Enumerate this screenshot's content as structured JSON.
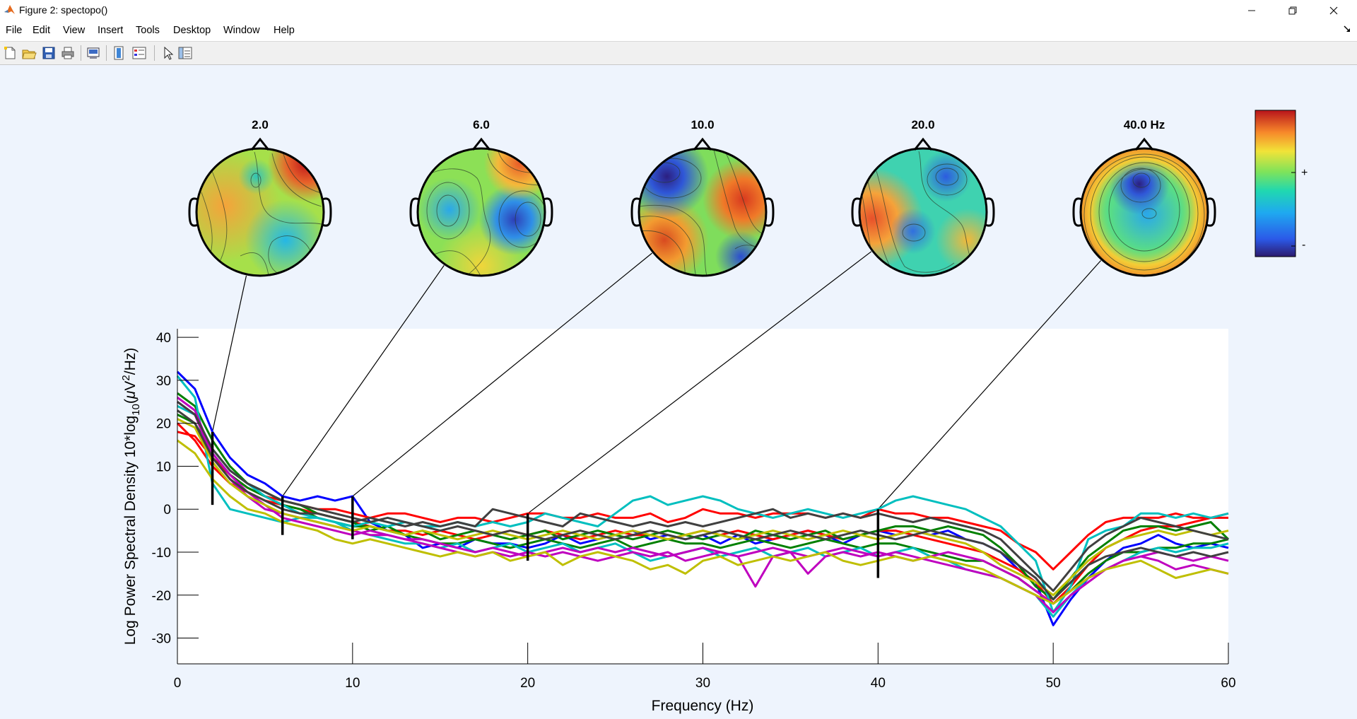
{
  "window": {
    "title": "Figure 2: spectopo()",
    "controls": [
      "minimize",
      "restore",
      "close"
    ]
  },
  "menu": [
    "File",
    "Edit",
    "View",
    "Insert",
    "Tools",
    "Desktop",
    "Window",
    "Help"
  ],
  "toolbar": [
    "new-figure-icon",
    "open-file-icon",
    "save-icon",
    "print-icon",
    "print-preview-icon",
    "colorbar-icon",
    "legend-icon",
    "pointer-icon",
    "property-inspector-icon"
  ],
  "colorbar": {
    "plus_label": "+",
    "minus_label": "-"
  },
  "chart_data": {
    "type": "line",
    "xlabel": "Frequency (Hz)",
    "ylabel_parts": [
      "Log Power Spectral Density 10*log",
      "10",
      "(",
      "μ",
      "V",
      "2",
      "/Hz)"
    ],
    "xlim": [
      0,
      60
    ],
    "ylim": [
      -36,
      42
    ],
    "xticks": [
      0,
      10,
      20,
      30,
      40,
      50,
      60
    ],
    "yticks": [
      -30,
      -20,
      -10,
      0,
      10,
      20,
      30,
      40
    ],
    "grid": false,
    "x": [
      0,
      1,
      2,
      3,
      4,
      5,
      6,
      7,
      8,
      9,
      10,
      11,
      12,
      13,
      14,
      15,
      16,
      17,
      18,
      19,
      20,
      21,
      22,
      23,
      24,
      25,
      26,
      27,
      28,
      29,
      30,
      31,
      32,
      33,
      34,
      35,
      36,
      37,
      38,
      39,
      40,
      41,
      42,
      43,
      44,
      45,
      46,
      47,
      48,
      49,
      50,
      51,
      52,
      53,
      54,
      55,
      56,
      57,
      58,
      59,
      60
    ],
    "marker_freqs": [
      2,
      6,
      10,
      20,
      40
    ],
    "marker_ranges": [
      [
        1,
        18
      ],
      [
        -6,
        3
      ],
      [
        -7,
        3
      ],
      [
        -12,
        -1
      ],
      [
        -16,
        0
      ]
    ],
    "topo_labels": [
      "2.0",
      "6.0",
      "10.0",
      "20.0",
      "40.0 Hz"
    ],
    "series": [
      {
        "color": "#0000ff",
        "values": [
          32,
          28,
          18,
          12,
          8,
          6,
          3,
          2,
          3,
          2,
          3,
          -3,
          -5,
          -6,
          -9,
          -8,
          -9,
          -7,
          -8,
          -8,
          -9,
          -8,
          -6,
          -8,
          -7,
          -6,
          -5,
          -7,
          -6,
          -7,
          -6,
          -8,
          -6,
          -8,
          -7,
          -6,
          -5,
          -6,
          -8,
          -6,
          -5,
          -6,
          -5,
          -6,
          -5,
          -7,
          -8,
          -10,
          -14,
          -17,
          -27,
          -21,
          -16,
          -12,
          -9,
          -8,
          -6,
          -8,
          -9,
          -8,
          -9
        ]
      },
      {
        "color": "#ff0000",
        "values": [
          18,
          17,
          12,
          8,
          5,
          3,
          2,
          1,
          0,
          0,
          -1,
          -2,
          -1,
          -1,
          -2,
          -3,
          -2,
          -2,
          -3,
          -2,
          -1,
          -1,
          -2,
          -2,
          -1,
          -2,
          -2,
          -1,
          -3,
          -2,
          0,
          -1,
          -1,
          -2,
          -1,
          -1,
          -1,
          -2,
          -1,
          -2,
          0,
          -1,
          -1,
          -2,
          -2,
          -3,
          -4,
          -5,
          -8,
          -10,
          -14,
          -10,
          -6,
          -3,
          -2,
          -2,
          -2,
          -1,
          -2,
          -2,
          -1
        ]
      },
      {
        "color": "#ff0000",
        "values": [
          20,
          16,
          10,
          6,
          4,
          2,
          1,
          0,
          -1,
          -2,
          -3,
          -4,
          -5,
          -5,
          -6,
          -5,
          -6,
          -7,
          -6,
          -5,
          -6,
          -5,
          -6,
          -7,
          -6,
          -5,
          -6,
          -6,
          -7,
          -6,
          -5,
          -6,
          -5,
          -6,
          -7,
          -6,
          -5,
          -6,
          -7,
          -6,
          -5,
          -5,
          -6,
          -7,
          -8,
          -9,
          -10,
          -12,
          -14,
          -17,
          -22,
          -18,
          -13,
          -9,
          -7,
          -5,
          -4,
          -4,
          -3,
          -2,
          -2
        ]
      },
      {
        "color": "#008000",
        "values": [
          27,
          24,
          16,
          10,
          6,
          4,
          2,
          1,
          -1,
          -2,
          -3,
          -5,
          -4,
          -6,
          -5,
          -7,
          -6,
          -5,
          -6,
          -7,
          -6,
          -5,
          -7,
          -6,
          -5,
          -6,
          -7,
          -6,
          -5,
          -6,
          -7,
          -6,
          -7,
          -5,
          -6,
          -7,
          -6,
          -5,
          -7,
          -6,
          -5,
          -4,
          -4,
          -5,
          -4,
          -5,
          -6,
          -9,
          -13,
          -18,
          -21,
          -16,
          -11,
          -8,
          -5,
          -4,
          -4,
          -5,
          -4,
          -3,
          -7
        ]
      },
      {
        "color": "#008000",
        "values": [
          22,
          20,
          13,
          8,
          5,
          3,
          1,
          0,
          -2,
          -3,
          -4,
          -4,
          -5,
          -6,
          -7,
          -8,
          -8,
          -7,
          -8,
          -9,
          -8,
          -7,
          -8,
          -9,
          -8,
          -7,
          -9,
          -8,
          -7,
          -8,
          -8,
          -9,
          -8,
          -7,
          -8,
          -9,
          -8,
          -7,
          -8,
          -9,
          -8,
          -8,
          -9,
          -10,
          -11,
          -12,
          -12,
          -14,
          -16,
          -19,
          -22,
          -19,
          -15,
          -12,
          -10,
          -10,
          -9,
          -9,
          -8,
          -8,
          -7
        ]
      },
      {
        "color": "#00bfbf",
        "values": [
          31,
          26,
          6,
          0,
          -1,
          -2,
          -3,
          -2,
          -2,
          -3,
          -4,
          -3,
          -4,
          -3,
          -4,
          -4,
          -3,
          -4,
          -3,
          -4,
          -3,
          -1,
          -2,
          -3,
          -4,
          -1,
          2,
          3,
          1,
          2,
          3,
          2,
          0,
          -1,
          -2,
          -1,
          0,
          -1,
          -2,
          -1,
          0,
          2,
          3,
          2,
          1,
          0,
          -2,
          -4,
          -8,
          -12,
          -24,
          -18,
          -7,
          -5,
          -4,
          -1,
          -1,
          -2,
          -1,
          -2,
          -1
        ]
      },
      {
        "color": "#00bfbf",
        "values": [
          24,
          22,
          14,
          9,
          6,
          3,
          1,
          -1,
          -2,
          -3,
          -5,
          -6,
          -7,
          -8,
          -8,
          -9,
          -8,
          -10,
          -9,
          -8,
          -10,
          -9,
          -8,
          -10,
          -9,
          -8,
          -10,
          -12,
          -11,
          -10,
          -9,
          -11,
          -10,
          -9,
          -11,
          -10,
          -9,
          -11,
          -10,
          -9,
          -11,
          -10,
          -9,
          -11,
          -12,
          -14,
          -15,
          -16,
          -18,
          -20,
          -25,
          -20,
          -16,
          -14,
          -12,
          -10,
          -9,
          -10,
          -9,
          -9,
          -8
        ]
      },
      {
        "color": "#bf00bf",
        "values": [
          26,
          23,
          13,
          8,
          4,
          1,
          -2,
          -3,
          -4,
          -5,
          -6,
          -5,
          -6,
          -7,
          -8,
          -9,
          -10,
          -11,
          -10,
          -11,
          -10,
          -11,
          -10,
          -11,
          -12,
          -11,
          -10,
          -11,
          -10,
          -12,
          -11,
          -10,
          -11,
          -18,
          -11,
          -10,
          -15,
          -11,
          -10,
          -11,
          -10,
          -11,
          -12,
          -11,
          -10,
          -11,
          -12,
          -14,
          -16,
          -19,
          -22,
          -19,
          -16,
          -14,
          -12,
          -11,
          -12,
          -14,
          -13,
          -14,
          -15
        ]
      },
      {
        "color": "#bf00bf",
        "values": [
          25,
          22,
          12,
          7,
          3,
          0,
          -1,
          -2,
          -3,
          -4,
          -5,
          -6,
          -6,
          -7,
          -7,
          -8,
          -9,
          -10,
          -9,
          -10,
          -11,
          -10,
          -9,
          -10,
          -9,
          -10,
          -9,
          -10,
          -11,
          -10,
          -9,
          -10,
          -11,
          -10,
          -9,
          -10,
          -11,
          -10,
          -9,
          -10,
          -11,
          -10,
          -11,
          -12,
          -13,
          -14,
          -15,
          -16,
          -18,
          -20,
          -24,
          -20,
          -17,
          -14,
          -12,
          -11,
          -10,
          -11,
          -12,
          -11,
          -12
        ]
      },
      {
        "color": "#bfbf00",
        "values": [
          16,
          13,
          7,
          3,
          0,
          -1,
          -3,
          -4,
          -5,
          -7,
          -8,
          -7,
          -8,
          -9,
          -10,
          -11,
          -10,
          -11,
          -10,
          -12,
          -11,
          -10,
          -13,
          -11,
          -10,
          -11,
          -12,
          -14,
          -13,
          -15,
          -12,
          -11,
          -13,
          -12,
          -11,
          -12,
          -11,
          -10,
          -12,
          -13,
          -12,
          -11,
          -12,
          -11,
          -12,
          -13,
          -14,
          -16,
          -18,
          -20,
          -22,
          -19,
          -16,
          -14,
          -13,
          -12,
          -14,
          -16,
          -15,
          -14,
          -15
        ]
      },
      {
        "color": "#bfbf00",
        "values": [
          21,
          19,
          11,
          6,
          3,
          1,
          -1,
          -2,
          -3,
          -4,
          -5,
          -4,
          -5,
          -6,
          -5,
          -6,
          -7,
          -6,
          -5,
          -6,
          -7,
          -6,
          -5,
          -6,
          -7,
          -6,
          -5,
          -6,
          -7,
          -6,
          -5,
          -6,
          -7,
          -6,
          -5,
          -6,
          -7,
          -6,
          -5,
          -6,
          -7,
          -6,
          -5,
          -6,
          -7,
          -8,
          -10,
          -13,
          -15,
          -17,
          -20,
          -16,
          -12,
          -9,
          -7,
          -6,
          -5,
          -6,
          -5,
          -6,
          -5
        ]
      },
      {
        "color": "#404040",
        "values": [
          23,
          20,
          12,
          7,
          4,
          2,
          0,
          -1,
          -1,
          -2,
          -3,
          -2,
          -3,
          -4,
          -3,
          -4,
          -3,
          -4,
          0,
          -1,
          -2,
          -3,
          -4,
          -1,
          -2,
          -3,
          -4,
          -3,
          -4,
          -3,
          -4,
          -3,
          -2,
          -1,
          0,
          -2,
          -1,
          -2,
          -1,
          -2,
          -1,
          -2,
          -3,
          -2,
          -3,
          -4,
          -5,
          -7,
          -11,
          -15,
          -19,
          -14,
          -9,
          -6,
          -4,
          -2,
          -3,
          -4,
          -5,
          -6,
          -7
        ]
      },
      {
        "color": "#404040",
        "values": [
          25,
          22,
          14,
          9,
          6,
          4,
          2,
          1,
          0,
          -1,
          -2,
          -3,
          -2,
          -3,
          -4,
          -5,
          -4,
          -5,
          -6,
          -5,
          -6,
          -7,
          -6,
          -5,
          -6,
          -7,
          -6,
          -5,
          -6,
          -7,
          -6,
          -5,
          -6,
          -7,
          -6,
          -5,
          -6,
          -7,
          -6,
          -5,
          -6,
          -7,
          -6,
          -5,
          -6,
          -7,
          -8,
          -10,
          -13,
          -16,
          -21,
          -17,
          -13,
          -11,
          -10,
          -9,
          -10,
          -11,
          -10,
          -11,
          -10
        ]
      }
    ]
  }
}
